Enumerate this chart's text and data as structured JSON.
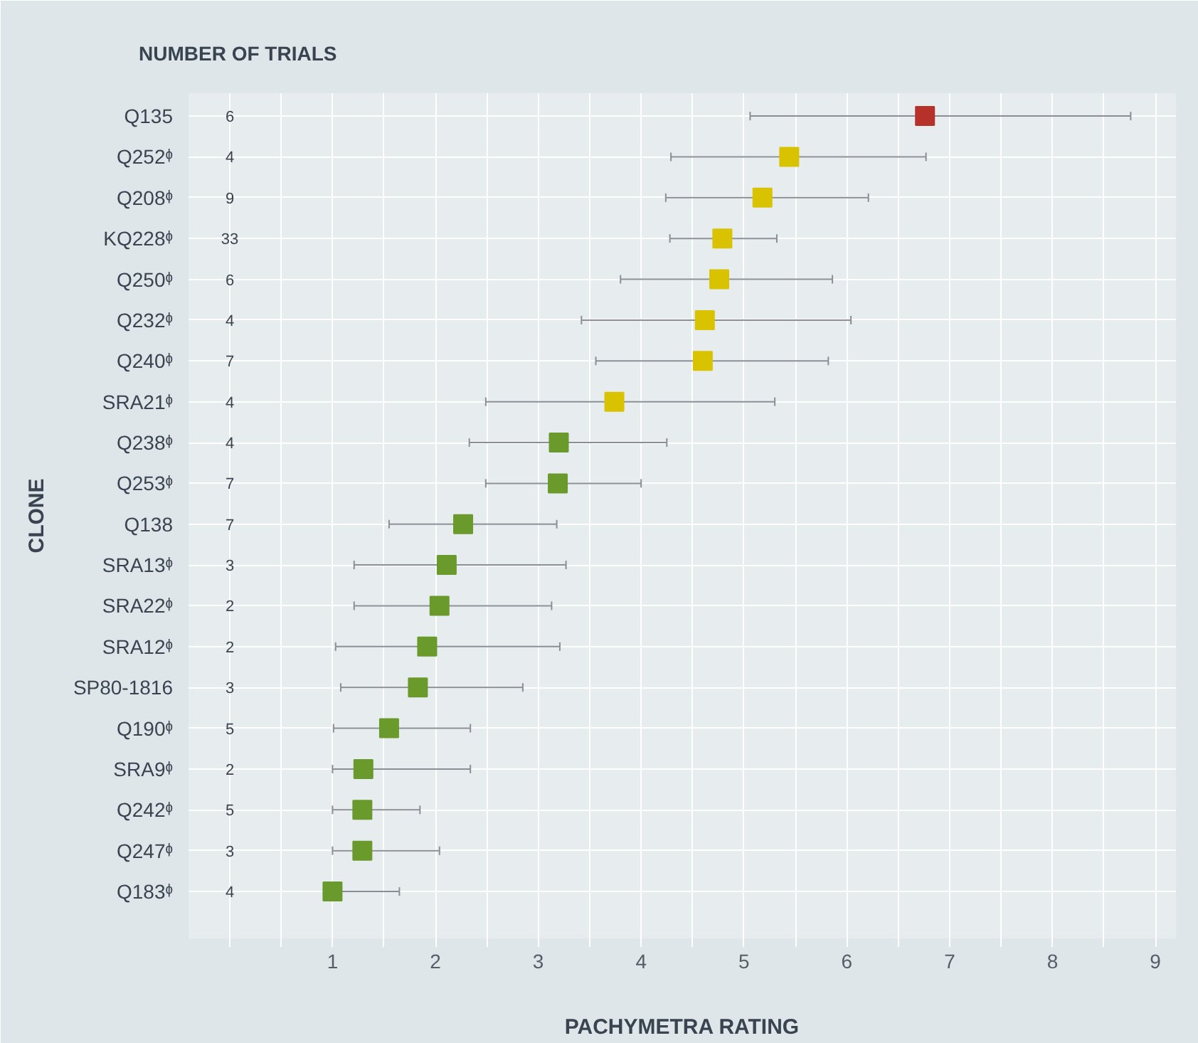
{
  "chart_data": {
    "type": "scatter",
    "orientation": "horizontal",
    "xlabel": "PACHYMETRA RATING",
    "ylabel": "CLONE",
    "categories": [
      "Q135",
      "Q252ᶲ",
      "Q208ᶲ",
      "KQ228ᶲ",
      "Q250ᶲ",
      "Q232ᶲ",
      "Q240ᶲ",
      "SRA21ᶲ",
      "Q238ᶲ",
      "Q253ᶲ",
      "Q138",
      "SRA13ᶲ",
      "SRA22ᶲ",
      "SRA12ᶲ",
      "SP80-1816",
      "Q190ᶲ",
      "SRA9ᶲ",
      "Q242ᶲ",
      "Q247ᶲ",
      "Q183ᶲ"
    ],
    "values": [
      6.76,
      5.44,
      5.18,
      4.79,
      4.76,
      4.62,
      4.6,
      3.74,
      3.2,
      3.19,
      2.27,
      2.11,
      2.04,
      1.92,
      1.83,
      1.55,
      1.3,
      1.29,
      1.29,
      1.0
    ],
    "colors": [
      "#b5312a",
      "#d9c300",
      "#d9c300",
      "#d9c300",
      "#d9c300",
      "#d9c300",
      "#d9c300",
      "#d9c300",
      "#6b9a2c",
      "#6b9a2c",
      "#6b9a2c",
      "#6b9a2c",
      "#6b9a2c",
      "#6b9a2c",
      "#6b9a2c",
      "#6b9a2c",
      "#6b9a2c",
      "#6b9a2c",
      "#6b9a2c",
      "#6b9a2c"
    ],
    "errors": [
      [
        5.06,
        8.76
      ],
      [
        4.29,
        6.77
      ],
      [
        4.24,
        6.21
      ],
      [
        4.28,
        5.32
      ],
      [
        3.8,
        5.86
      ],
      [
        3.42,
        6.04
      ],
      [
        3.56,
        5.82
      ],
      [
        2.49,
        5.3
      ],
      [
        2.33,
        4.25
      ],
      [
        2.49,
        4.0
      ],
      [
        1.55,
        3.18
      ],
      [
        1.21,
        3.27
      ],
      [
        1.21,
        3.13
      ],
      [
        1.03,
        3.21
      ],
      [
        1.08,
        2.85
      ],
      [
        1.01,
        2.34
      ],
      [
        1.0,
        2.34
      ],
      [
        1.0,
        1.85
      ],
      [
        1.0,
        2.04
      ],
      [
        1.0,
        1.65
      ]
    ],
    "marker": "square",
    "grid": true,
    "xlim": [
      -0.4,
      9.2
    ],
    "xticks": [
      {
        "value": 0,
        "label": null
      },
      {
        "value": 0.5,
        "label": null
      },
      1,
      {
        "value": 1.5,
        "label": null
      },
      2,
      {
        "value": 2.5,
        "label": null
      },
      3,
      {
        "value": 3.5,
        "label": null
      },
      4,
      {
        "value": 4.5,
        "label": null
      },
      5,
      {
        "value": 5.5,
        "label": null
      },
      6,
      {
        "value": 6.5,
        "label": null
      },
      7,
      {
        "value": 7.5,
        "label": null
      },
      8,
      {
        "value": 8.5,
        "label": null
      },
      9
    ],
    "annotations": [
      "NUMBER OF TRIALS",
      "6",
      "4",
      "9",
      "33",
      "6",
      "4",
      "7",
      "4",
      "4",
      "7",
      "7",
      "3",
      "2",
      "2",
      "3",
      "5",
      "2",
      "5",
      "3",
      "4"
    ]
  }
}
